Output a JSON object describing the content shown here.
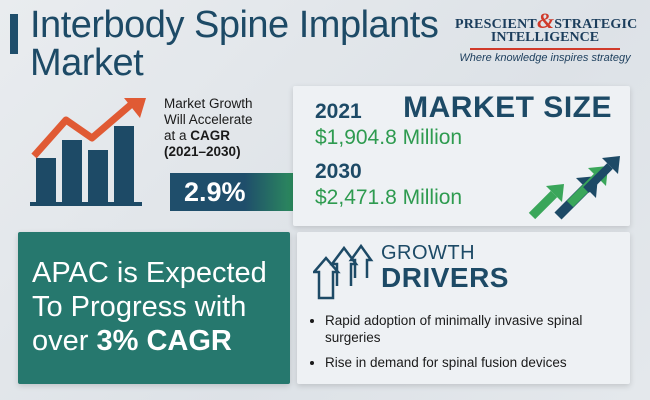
{
  "header": {
    "title_line1": "Interbody Spine Implants",
    "title_line2": "Market"
  },
  "brand": {
    "line1_a": "PRESCIENT",
    "line1_amp": "&",
    "line1_b": "STRATEGIC",
    "line2": "INTELLIGENCE",
    "tagline": "Where knowledge inspires strategy"
  },
  "growth": {
    "line1": "Market Growth",
    "line2": "Will Accelerate",
    "line3_prefix": "at a ",
    "line3_bold": "CAGR",
    "line4": "(2021–2030)",
    "cagr_value": "2.9%"
  },
  "market_size": {
    "title": "MARKET SIZE",
    "year1": "2021",
    "value1": "$1,904.8 Million",
    "year2": "2030",
    "value2": "$2,471.8 Million"
  },
  "apac": {
    "line1": "APAC is Expected",
    "line2": "To Progress with",
    "line3_prefix": "over ",
    "line3_bold": "3% CAGR"
  },
  "drivers": {
    "title_line1": "GROWTH",
    "title_line2": "DRIVERS",
    "items": [
      "Rapid adoption of minimally invasive spinal surgeries",
      "Rise in demand for spinal fusion devices"
    ]
  },
  "colors": {
    "navy": "#1d4a66",
    "green": "#2e9b50",
    "teal": "#26786e",
    "red": "#d03a2a"
  }
}
